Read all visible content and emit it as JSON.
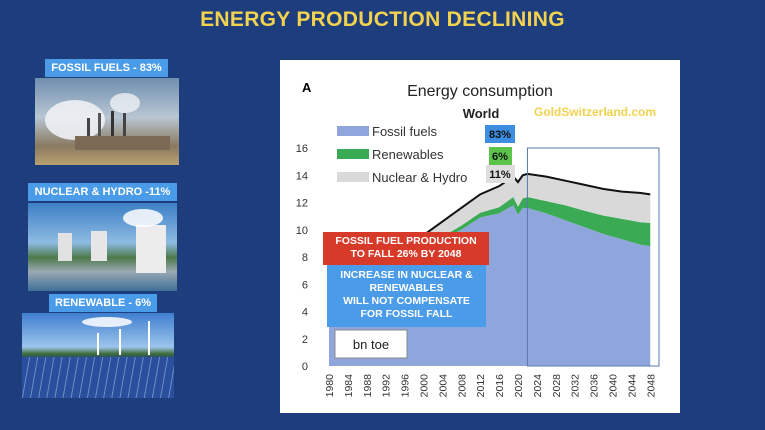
{
  "slide_title": "ENERGY PRODUCTION DECLINING",
  "side_panels": [
    {
      "label": "FOSSIL FUELS - 83%",
      "image": "coal-power-plant"
    },
    {
      "label": "NUCLEAR & HYDRO -11%",
      "image": "nuclear-cooling-towers"
    },
    {
      "label": "RENEWABLE - 6%",
      "image": "solar-and-wind-farm"
    }
  ],
  "colors": {
    "background": "#1d3d7c",
    "title": "#f2d24e",
    "fossil": "#8fa6dc",
    "renewables": "#3aaa55",
    "nuclear_hydro": "#d9d9d9",
    "total_line": "#111111",
    "red_note": "#d83a2a",
    "blue_note": "#4a9be8"
  },
  "chart_data": {
    "type": "area",
    "panel_letter": "A",
    "title": "Energy consumption",
    "subtitle": "World",
    "watermark": "GoldSwitzerland.com",
    "unit_label": "bn toe",
    "ylim": [
      0,
      16
    ],
    "yticks": [
      "0",
      "2",
      "4",
      "6",
      "8",
      "10",
      "12",
      "14",
      "16"
    ],
    "xlim": [
      1980,
      2049
    ],
    "xticks": [
      "1980",
      "1984",
      "1988",
      "1992",
      "1996",
      "2000",
      "2004",
      "2008",
      "2012",
      "2016",
      "2020",
      "2024",
      "2028",
      "2032",
      "2036",
      "2040",
      "2044",
      "2048"
    ],
    "projection_start": 2022,
    "years": [
      1980,
      1984,
      1988,
      1992,
      1996,
      2000,
      2004,
      2008,
      2012,
      2016,
      2019,
      2020,
      2021,
      2022,
      2026,
      2030,
      2034,
      2038,
      2042,
      2046,
      2048
    ],
    "series": [
      {
        "name": "Fossil fuels",
        "share": "83%",
        "values": [
          6.3,
          6.6,
          7.2,
          7.4,
          7.7,
          8.2,
          9.3,
          10.0,
          10.9,
          11.2,
          11.8,
          11.1,
          11.6,
          11.6,
          11.2,
          10.7,
          10.2,
          9.7,
          9.3,
          8.9,
          8.8
        ]
      },
      {
        "name": "Renewables",
        "share": "6%",
        "values": [
          0.1,
          0.1,
          0.1,
          0.15,
          0.15,
          0.2,
          0.2,
          0.3,
          0.35,
          0.45,
          0.6,
          0.6,
          0.7,
          0.8,
          0.9,
          1.1,
          1.2,
          1.35,
          1.5,
          1.65,
          1.7
        ]
      },
      {
        "name": "Nuclear & Hydro",
        "share": "11%",
        "values": [
          0.8,
          0.9,
          1.0,
          1.05,
          1.15,
          1.2,
          1.1,
          1.3,
          1.35,
          1.55,
          1.5,
          1.8,
          1.7,
          1.7,
          1.8,
          1.8,
          1.9,
          1.95,
          2.0,
          2.15,
          2.1
        ]
      }
    ],
    "annotations": {
      "red_note": [
        "FOSSIL FUEL PRODUCTION",
        "TO FALL 26% BY 2048"
      ],
      "blue_note": [
        "INCREASE IN NUCLEAR &",
        "RENEWABLES",
        "WILL NOT COMPENSATE",
        "FOR FOSSIL FALL"
      ]
    }
  }
}
